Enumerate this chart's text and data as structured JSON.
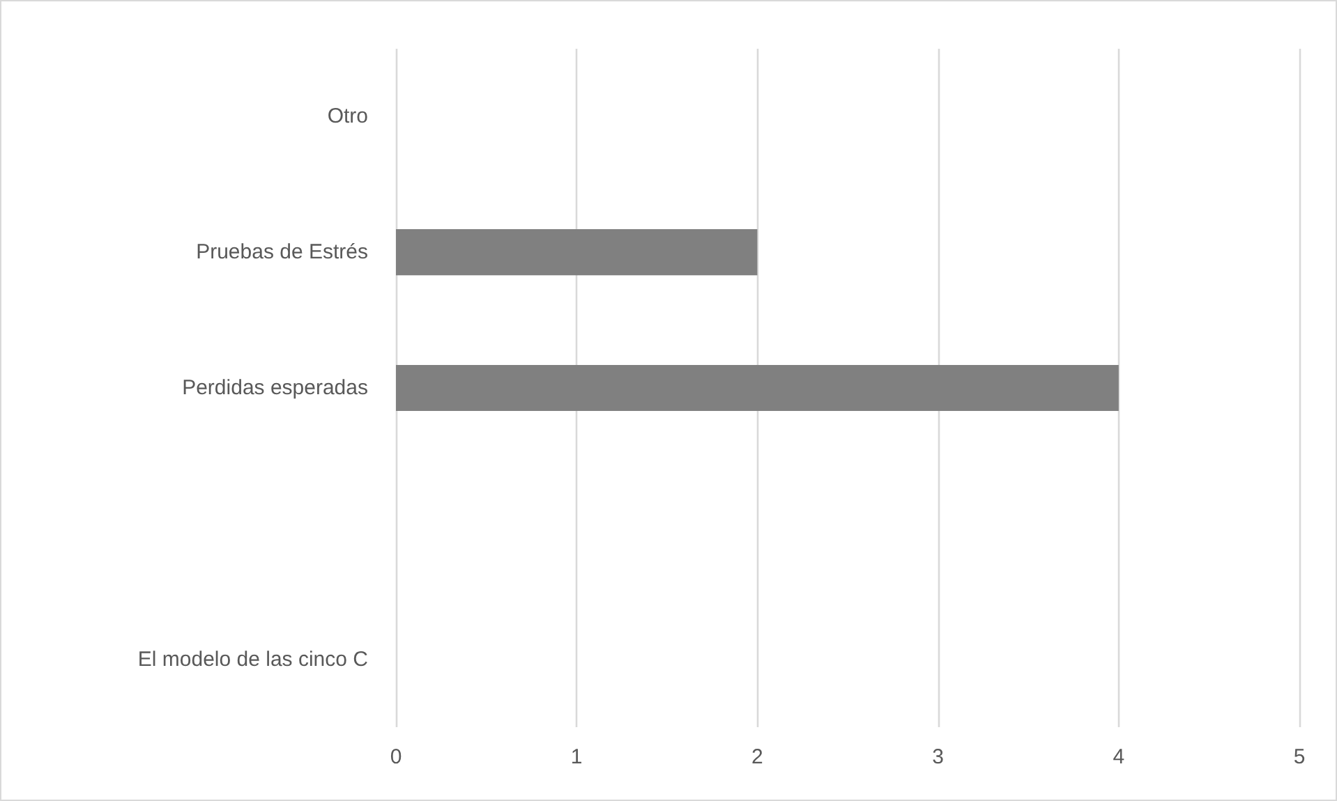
{
  "chart_data": {
    "type": "bar",
    "orientation": "horizontal",
    "categories": [
      "Otro",
      "Pruebas de Estrés",
      "Perdidas esperadas",
      null,
      "El modelo de las cinco C"
    ],
    "values": [
      0,
      2,
      4,
      0,
      0
    ],
    "color": "#808080",
    "xlim": [
      0,
      5
    ],
    "xticks": [
      0,
      1,
      2,
      3,
      4,
      5
    ],
    "grid": "x"
  }
}
